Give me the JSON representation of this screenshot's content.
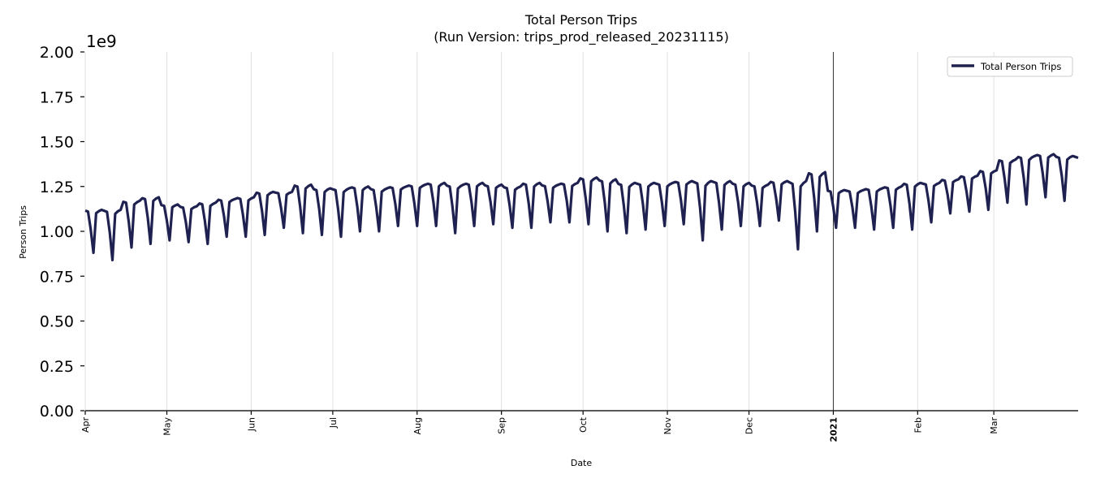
{
  "chart_data": {
    "type": "line",
    "title": "Total Person Trips",
    "subtitle": "(Run Version: trips_prod_released_20231115)",
    "xlabel": "Date",
    "ylabel": "Person Trips",
    "y_scale_label": "1e9",
    "ylim": [
      0,
      2.0
    ],
    "y_multiplier": 1000000000,
    "yticks": [
      "0.00",
      "0.25",
      "0.50",
      "0.75",
      "1.00",
      "1.25",
      "1.50",
      "1.75",
      "2.00"
    ],
    "xticks": [
      {
        "label": "Apr",
        "day": 0,
        "bold": false
      },
      {
        "label": "May",
        "day": 30,
        "bold": false
      },
      {
        "label": "Jun",
        "day": 61,
        "bold": false
      },
      {
        "label": "Jul",
        "day": 91,
        "bold": false
      },
      {
        "label": "Aug",
        "day": 122,
        "bold": false
      },
      {
        "label": "Sep",
        "day": 153,
        "bold": false
      },
      {
        "label": "Oct",
        "day": 183,
        "bold": false
      },
      {
        "label": "Nov",
        "day": 214,
        "bold": false
      },
      {
        "label": "Dec",
        "day": 244,
        "bold": false
      },
      {
        "label": "2021",
        "day": 275,
        "bold": true
      },
      {
        "label": "Feb",
        "day": 306,
        "bold": false
      },
      {
        "label": "Mar",
        "day": 334,
        "bold": false
      }
    ],
    "x_range_days": [
      0,
      365
    ],
    "x_start": "2020-04-01",
    "x_end": "2021-03-31",
    "grid": "vertical",
    "legend": {
      "position": "upper right",
      "entries": [
        "Total Person Trips"
      ]
    },
    "series": [
      {
        "name": "Total Person Trips",
        "color": "#1f2150",
        "unit": "1e9",
        "weekly_peaks": [
          1.12,
          1.12,
          1.17,
          1.19,
          1.15,
          1.14,
          1.16,
          1.18,
          1.19,
          1.22,
          1.22,
          1.26,
          1.24,
          1.24,
          1.25,
          1.24,
          1.25,
          1.26,
          1.27,
          1.26,
          1.27,
          1.26,
          1.25,
          1.27,
          1.26,
          1.27,
          1.3,
          1.29,
          1.27,
          1.27,
          1.27,
          1.28,
          1.28,
          1.28,
          1.27,
          1.26,
          1.28,
          1.28,
          1.33,
          1.23,
          1.23,
          1.24,
          1.25,
          1.27,
          1.27,
          1.29,
          1.31,
          1.34,
          1.4,
          1.42,
          1.43,
          1.42,
          1.42,
          1.41
        ],
        "weekly_troughs": [
          0.88,
          0.84,
          0.91,
          0.93,
          0.95,
          0.94,
          0.93,
          0.97,
          0.97,
          0.98,
          1.02,
          0.99,
          0.98,
          0.97,
          1.0,
          1.0,
          1.03,
          1.03,
          1.03,
          0.99,
          1.03,
          1.04,
          1.02,
          1.02,
          1.05,
          1.05,
          1.04,
          1.0,
          0.99,
          1.01,
          1.03,
          1.04,
          0.95,
          1.01,
          1.03,
          1.03,
          1.06,
          0.9,
          1.0,
          1.02,
          1.02,
          1.01,
          1.02,
          1.01,
          1.05,
          1.1,
          1.11,
          1.12,
          1.16,
          1.15,
          1.19,
          1.17,
          1.16,
          1.16
        ]
      }
    ]
  }
}
